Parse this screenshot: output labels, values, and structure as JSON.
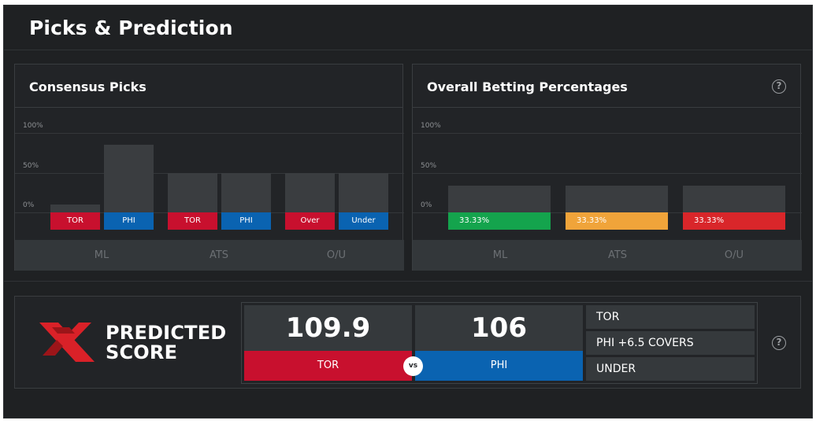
{
  "page": {
    "title": "Picks & Prediction"
  },
  "consensus": {
    "title": "Consensus Picks",
    "y_labels": [
      "100%",
      "50%",
      "0%"
    ],
    "bars": [
      {
        "label": "TOR",
        "value": 10,
        "color": "#c8102e"
      },
      {
        "label": "PHI",
        "value": 85,
        "color": "#0a63b1"
      },
      {
        "label": "TOR",
        "value": 50,
        "color": "#c8102e"
      },
      {
        "label": "PHI",
        "value": 50,
        "color": "#0a63b1"
      },
      {
        "label": "Over",
        "value": 50,
        "color": "#c8102e"
      },
      {
        "label": "Under",
        "value": 50,
        "color": "#0a63b1"
      }
    ],
    "categories": [
      "ML",
      "ATS",
      "O/U"
    ]
  },
  "betting": {
    "title": "Overall Betting Percentages",
    "help_icon": "help-circle-icon",
    "y_labels": [
      "100%",
      "50%",
      "0%"
    ],
    "bars": [
      {
        "label": "33.33%",
        "value": 33.33,
        "color": "#14a44d"
      },
      {
        "label": "33.33%",
        "value": 33.33,
        "color": "#f0a43a"
      },
      {
        "label": "33.33%",
        "value": 33.33,
        "color": "#d9262a"
      }
    ],
    "categories": [
      "ML",
      "ATS",
      "O/U"
    ]
  },
  "prediction": {
    "logo_icon": "brand-x-logo-icon",
    "line1": "PREDICTED",
    "line2": "SCORE",
    "home": {
      "score": "109.9",
      "team": "TOR",
      "color": "#c8102e"
    },
    "away": {
      "score": "106",
      "team": "PHI",
      "color": "#0a63b1"
    },
    "vs": "vs",
    "results": [
      "TOR",
      "PHI +6.5 COVERS",
      "UNDER"
    ],
    "help_icon": "help-circle-icon"
  },
  "chart_data": [
    {
      "type": "bar",
      "title": "Consensus Picks",
      "categories": [
        "ML",
        "ATS",
        "O/U"
      ],
      "series": [
        {
          "name": "TOR / Over",
          "values": [
            10,
            50,
            50
          ]
        },
        {
          "name": "PHI / Under",
          "values": [
            85,
            50,
            50
          ]
        }
      ],
      "ylim": [
        0,
        100
      ]
    },
    {
      "type": "bar",
      "title": "Overall Betting Percentages",
      "categories": [
        "ML",
        "ATS",
        "O/U"
      ],
      "values": [
        33.33,
        33.33,
        33.33
      ],
      "ylim": [
        0,
        100
      ]
    }
  ]
}
